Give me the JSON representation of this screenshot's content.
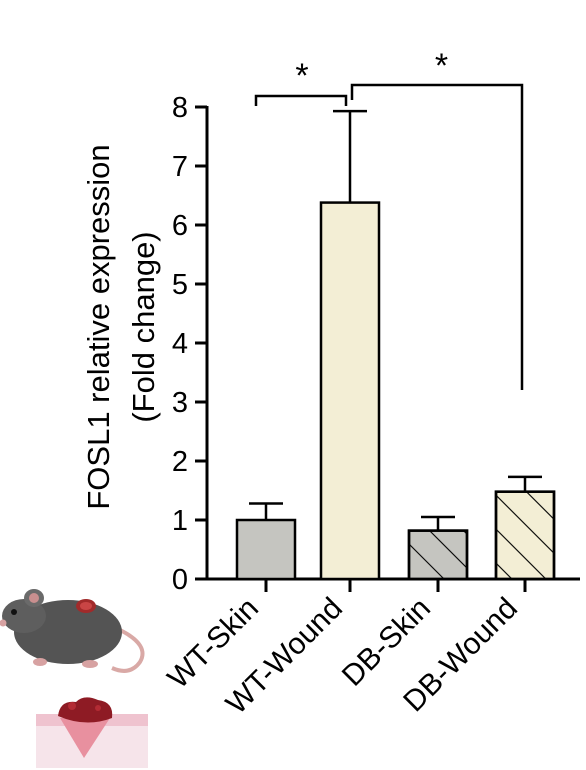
{
  "chart_data": {
    "type": "bar",
    "categories": [
      "WT-Skin",
      "WT-Wound",
      "DB-Skin",
      "DB-Wound"
    ],
    "values": [
      1.0,
      6.38,
      0.82,
      1.48
    ],
    "errors": [
      0.28,
      1.55,
      0.23,
      0.25
    ],
    "ylabel_line1": "FOSL1 relative expression",
    "ylabel_line2": "(Fold change)",
    "ylim": [
      0,
      8
    ],
    "yticks": [
      "0",
      "1",
      "2",
      "3",
      "4",
      "5",
      "6",
      "7",
      "8"
    ],
    "bar_colors": [
      "#c5c5c0",
      "#f3eed5",
      "#c5c5c0",
      "#f3eed5"
    ],
    "hatched": [
      false,
      false,
      true,
      true
    ],
    "significance": [
      {
        "from": "WT-Skin",
        "to": "WT-Wound",
        "label": "*"
      },
      {
        "from": "WT-Wound",
        "to": "DB-Wound",
        "label": "*"
      }
    ],
    "grid": false,
    "legend": "none"
  }
}
